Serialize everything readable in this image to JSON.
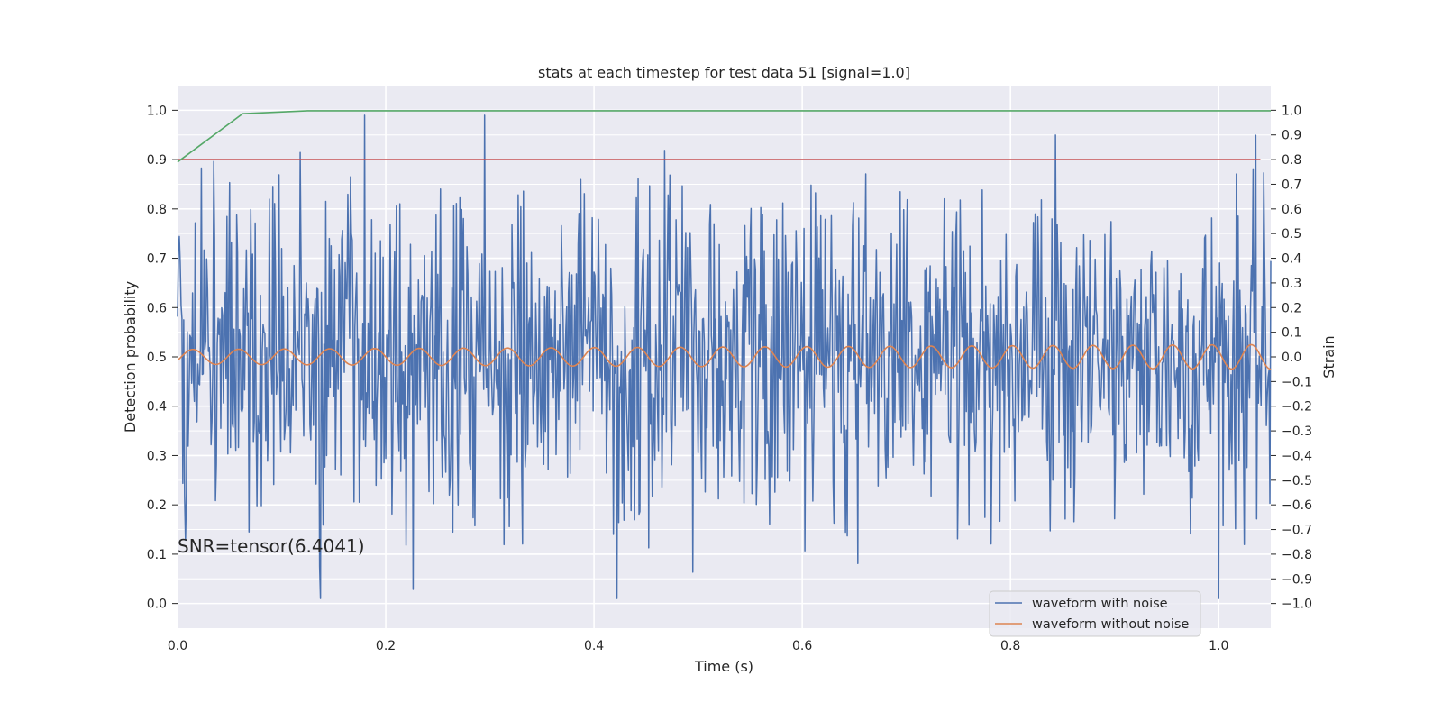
{
  "chart_data": {
    "type": "line",
    "title": "stats at each timestep for test data 51 [signal=1.0]",
    "xlabel": "Time (s)",
    "ylabel_left": "Detection probability",
    "ylabel_right": "Strain",
    "xlim": [
      0.0,
      1.05
    ],
    "ylim_left": [
      -0.05,
      1.05
    ],
    "ylim_right": [
      -1.1,
      1.1
    ],
    "x_ticks": [
      0.0,
      0.2,
      0.4,
      0.6,
      0.8,
      1.0
    ],
    "x_tick_labels": [
      "0.0",
      "0.2",
      "0.4",
      "0.6",
      "0.8",
      "1.0"
    ],
    "y_left_ticks": [
      0.0,
      0.1,
      0.2,
      0.3,
      0.4,
      0.5,
      0.6,
      0.7,
      0.8,
      0.9,
      1.0
    ],
    "y_left_tick_labels": [
      "0.0",
      "0.1",
      "0.2",
      "0.3",
      "0.4",
      "0.5",
      "0.6",
      "0.7",
      "0.8",
      "0.9",
      "1.0"
    ],
    "y_right_ticks": [
      -1.0,
      -0.9,
      -0.8,
      -0.7,
      -0.6,
      -0.5,
      -0.4,
      -0.3,
      -0.2,
      -0.1,
      0.0,
      0.1,
      0.2,
      0.3,
      0.4,
      0.5,
      0.6,
      0.7,
      0.8,
      0.9,
      1.0
    ],
    "y_right_tick_labels": [
      "−1.0",
      "−0.9",
      "−0.8",
      "−0.7",
      "−0.6",
      "−0.5",
      "−0.4",
      "−0.3",
      "−0.2",
      "−0.1",
      "0.0",
      "0.1",
      "0.2",
      "0.3",
      "0.4",
      "0.5",
      "0.6",
      "0.7",
      "0.8",
      "0.9",
      "1.0"
    ],
    "grid": true,
    "legend_position": "bottom-right",
    "annotation": "SNR=tensor(6.4041)",
    "series": [
      {
        "name": "",
        "axis": "left",
        "color": "#55a868",
        "x": [
          0.0,
          0.0625,
          0.125,
          0.1875,
          1.05
        ],
        "y": [
          0.895,
          0.993,
          0.999,
          0.999,
          0.999
        ]
      },
      {
        "name": "",
        "axis": "left",
        "color": "#c44e52",
        "x": [
          0.0,
          1.04
        ],
        "y": [
          0.9,
          0.9
        ]
      },
      {
        "name": "waveform with noise",
        "axis": "right",
        "color": "#4c72b0",
        "generated": "noisy strain, approximately zero-mean, spanning about −0.98 to 0.98",
        "x_range": [
          0.0,
          1.05
        ],
        "y_range": [
          -0.98,
          0.98
        ]
      },
      {
        "name": "waveform without noise",
        "axis": "right",
        "color": "#dd8452",
        "generated": "chirping sinusoid, amplitude growing from about 0.03 to 0.05, about 26 cycles over the time span",
        "x_range": [
          0.0,
          1.05
        ],
        "y_range": [
          -0.05,
          0.05
        ]
      }
    ]
  },
  "colors": {
    "plot_background": "#eaeaf2",
    "grid": "#ffffff",
    "text": "#262626"
  }
}
